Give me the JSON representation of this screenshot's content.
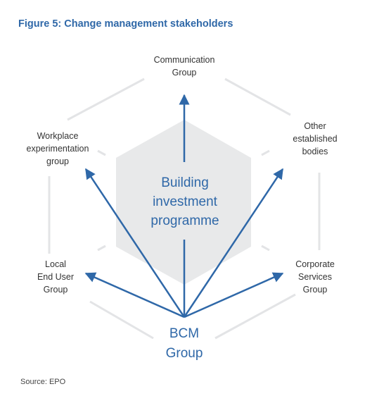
{
  "figure": {
    "title": "Figure 5: Change management stakeholders",
    "source": "Source: EPO"
  },
  "center": {
    "line1": "Building",
    "line2": "investment",
    "line3": "programme"
  },
  "origin": {
    "line1": "BCM",
    "line2": "Group"
  },
  "stakeholders": [
    {
      "line1": "Communication",
      "line2": "Group",
      "line3": ""
    },
    {
      "line1": "Other",
      "line2": "established",
      "line3": "bodies"
    },
    {
      "line1": "Corporate",
      "line2": "Services",
      "line3": "Group"
    },
    {
      "line1": "Local",
      "line2": "End User",
      "line3": "Group"
    },
    {
      "line1": "Workplace",
      "line2": "experimentation",
      "line3": "group"
    }
  ],
  "colors": {
    "accent": "#2f68a8",
    "hexagon_fill": "#e8e9ea",
    "outline": "#e3e4e6",
    "text": "#333333"
  }
}
